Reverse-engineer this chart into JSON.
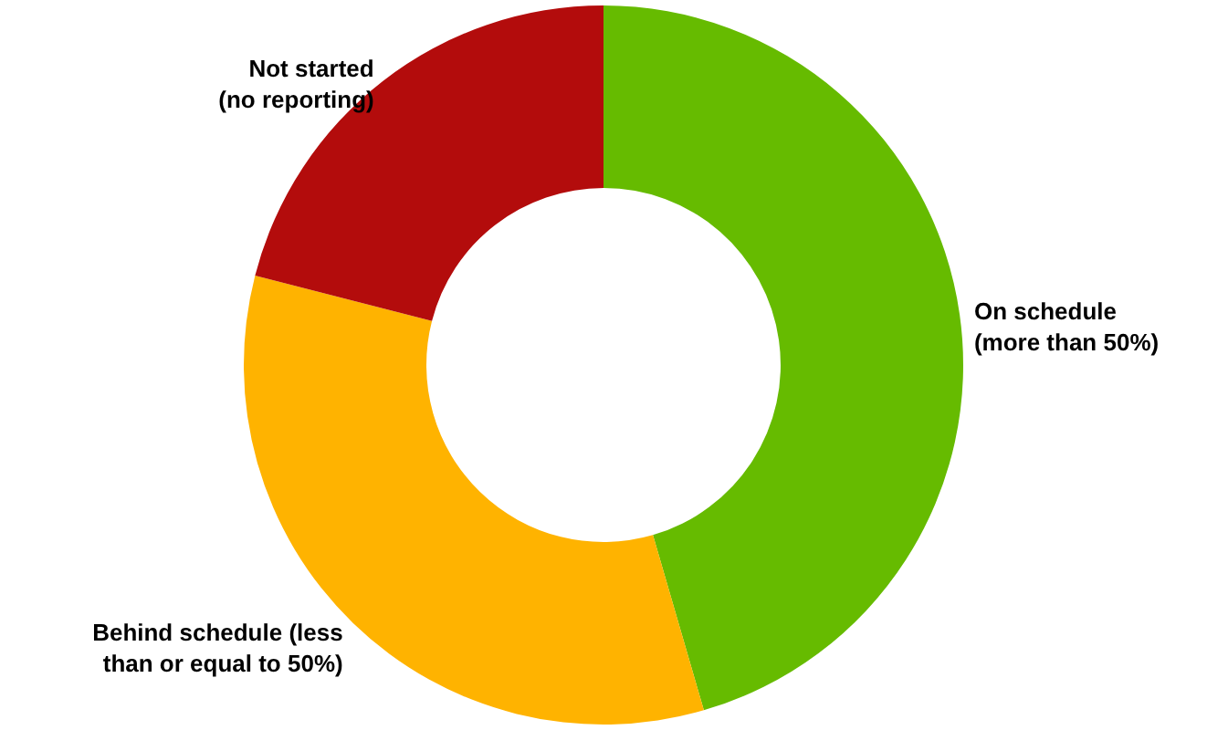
{
  "chart_data": {
    "type": "donut",
    "categories": [
      "On schedule (more than 50%)",
      "Behind schedule (less than or equal to 50%)",
      "Not started (no reporting)"
    ],
    "values": [
      45.5,
      33.5,
      21
    ],
    "colors": [
      "#66bb00",
      "#ffb300",
      "#b30c0c"
    ]
  }
}
